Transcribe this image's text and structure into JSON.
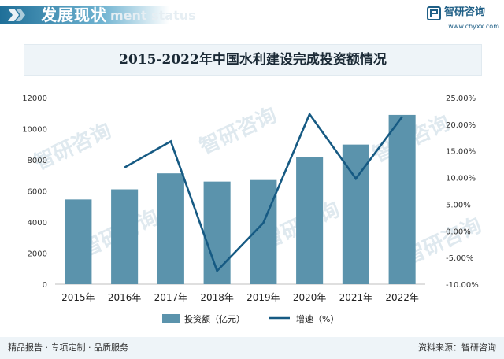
{
  "header": {
    "title": "发展现状",
    "ghost_text": "ment status",
    "logo_name": "智研咨询",
    "logo_url": "www.chyxx.com"
  },
  "watermark_text": "智研咨询",
  "footer": {
    "left": "精品报告 · 专项定制 · 品质服务",
    "right": "资料来源：智研咨询"
  },
  "colors": {
    "header_bar": "#1f6f98",
    "bar": "#5b93ac",
    "line": "#165a83",
    "title_band": "#eef4f8"
  },
  "chart_data": {
    "type": "bar",
    "title": "2015-2022年中国水利建设完成投资额情况",
    "categories": [
      "2015年",
      "2016年",
      "2017年",
      "2018年",
      "2019年",
      "2020年",
      "2021年",
      "2022年"
    ],
    "series": [
      {
        "name": "投资额（亿元）",
        "type": "bar",
        "axis": "left",
        "values": [
          5450,
          6100,
          7130,
          6600,
          6700,
          8180,
          8980,
          10890
        ]
      },
      {
        "name": "增速（%）",
        "type": "line",
        "axis": "right",
        "values": [
          null,
          11.9,
          16.8,
          -7.5,
          1.5,
          21.9,
          9.8,
          21.4
        ]
      }
    ],
    "y_left": {
      "min": 0,
      "max": 12000,
      "ticks": [
        "0",
        "2000",
        "4000",
        "6000",
        "8000",
        "10000",
        "12000"
      ]
    },
    "y_right": {
      "min": -10,
      "max": 25,
      "ticks": [
        "-10.00%",
        "-5.00%",
        "0.00%",
        "5.00%",
        "10.00%",
        "15.00%",
        "20.00%",
        "25.00%"
      ]
    },
    "grid": false,
    "legend_position": "bottom-center"
  }
}
